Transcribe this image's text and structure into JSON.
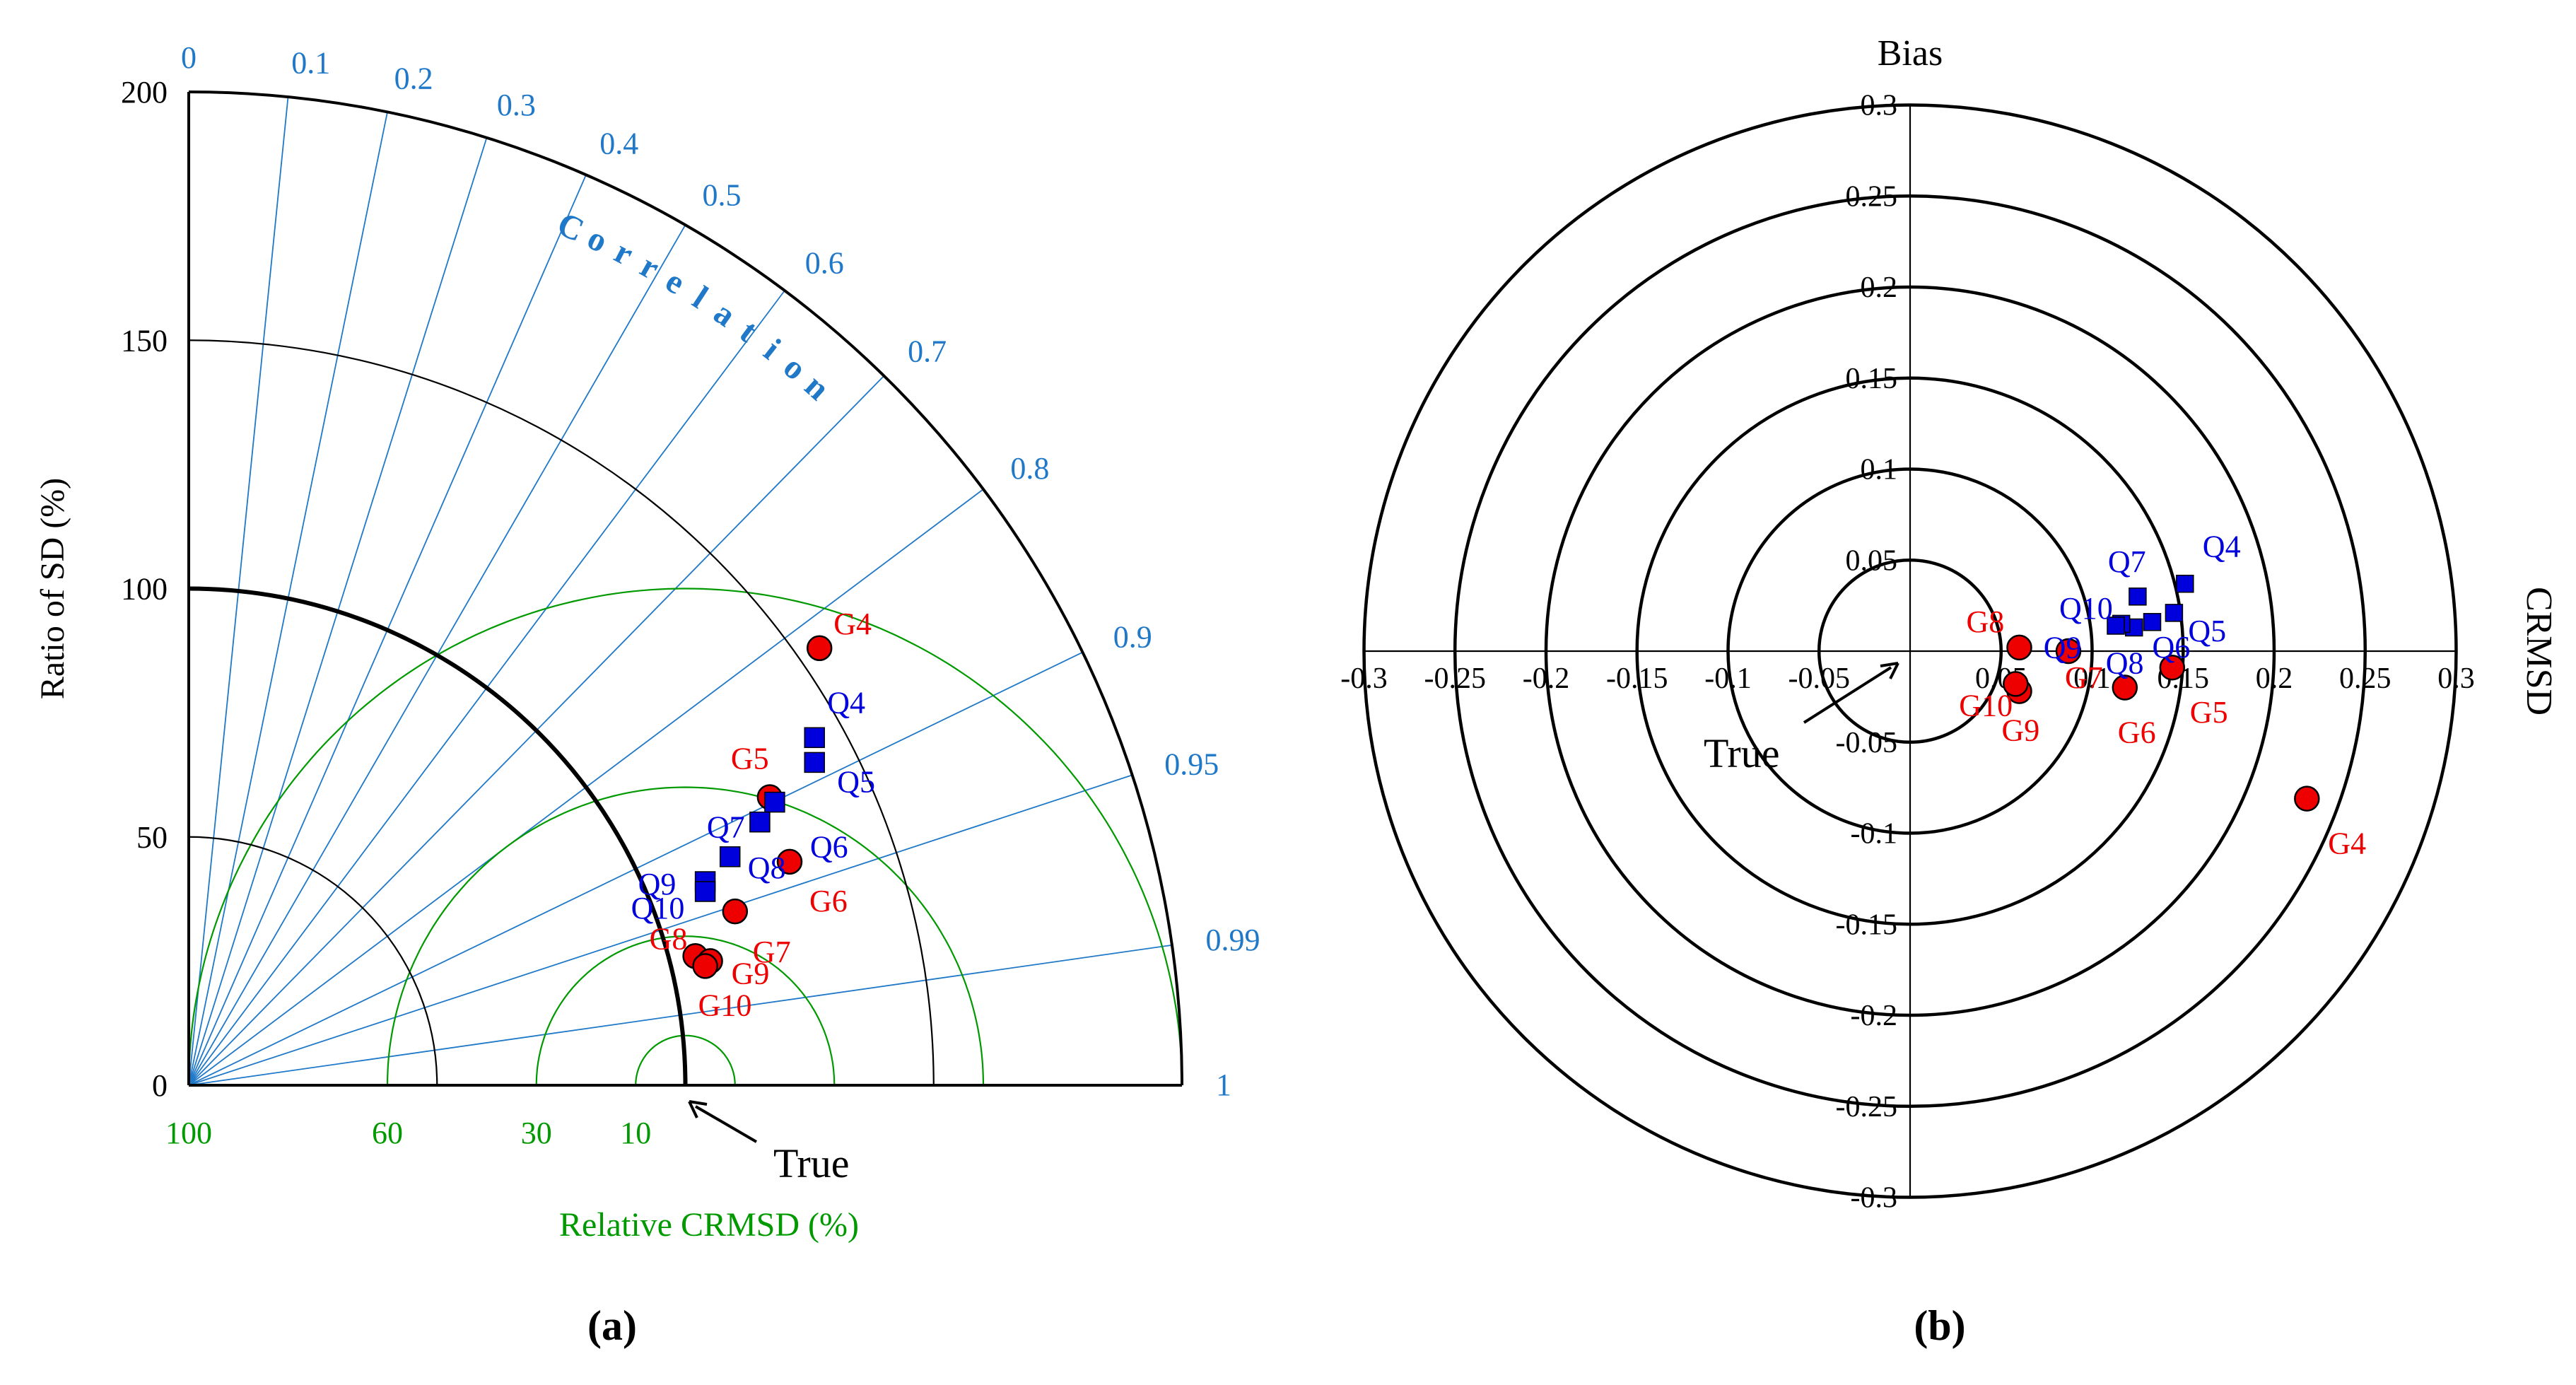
{
  "figure": {
    "panels": [
      "(a)",
      "(b)"
    ],
    "colors": {
      "axis": "#000000",
      "correlation": "#1f78c8",
      "crmsd": "#009a00",
      "series_g": "#ee0000",
      "series_q": "#0000dd",
      "text_g": "#ee0000",
      "text_q": "#0000dd"
    }
  },
  "chart_data": [
    {
      "type": "scatter",
      "subtype": "taylor-diagram",
      "panel": "(a)",
      "ylabel": "Ratio of SD (%)",
      "sd_ticks": [
        {
          "value": 0,
          "label": "0"
        },
        {
          "value": 50,
          "label": "50"
        },
        {
          "value": 100,
          "label": "100"
        },
        {
          "value": 150,
          "label": "150"
        },
        {
          "value": 200,
          "label": "200"
        }
      ],
      "sd_max": 200,
      "reference_sd": 100,
      "correlation_label": "Correlation",
      "correlation_ticks": [
        {
          "value": 0,
          "label": "0"
        },
        {
          "value": 0.1,
          "label": "0.1"
        },
        {
          "value": 0.2,
          "label": "0.2"
        },
        {
          "value": 0.3,
          "label": "0.3"
        },
        {
          "value": 0.4,
          "label": "0.4"
        },
        {
          "value": 0.5,
          "label": "0.5"
        },
        {
          "value": 0.6,
          "label": "0.6"
        },
        {
          "value": 0.7,
          "label": "0.7"
        },
        {
          "value": 0.8,
          "label": "0.8"
        },
        {
          "value": 0.9,
          "label": "0.9"
        },
        {
          "value": 0.95,
          "label": "0.95"
        },
        {
          "value": 0.99,
          "label": "0.99"
        },
        {
          "value": 1,
          "label": "1"
        }
      ],
      "crmsd_label": "Relative CRMSD (%)",
      "crmsd_ticks": [
        {
          "value": 10,
          "label": "10"
        },
        {
          "value": 30,
          "label": "30"
        },
        {
          "value": 60,
          "label": "60"
        },
        {
          "value": 100,
          "label": "100"
        }
      ],
      "true_label": "True",
      "series": [
        {
          "name": "G",
          "marker": "circle",
          "points": [
            {
              "label": "G4",
              "x": 127,
              "y": 88
            },
            {
              "label": "G5",
              "x": 117,
              "y": 58
            },
            {
              "label": "G6",
              "x": 121,
              "y": 45
            },
            {
              "label": "G7",
              "x": 110,
              "y": 35
            },
            {
              "label": "G8",
              "x": 102,
              "y": 26
            },
            {
              "label": "G9",
              "x": 105,
              "y": 25
            },
            {
              "label": "G10",
              "x": 104,
              "y": 24
            }
          ]
        },
        {
          "name": "Q",
          "marker": "square",
          "points": [
            {
              "label": "Q4",
              "x": 126,
              "y": 70
            },
            {
              "label": "Q5",
              "x": 126,
              "y": 65
            },
            {
              "label": "Q6",
              "x": 118,
              "y": 57
            },
            {
              "label": "Q7",
              "x": 115,
              "y": 53
            },
            {
              "label": "Q8",
              "x": 109,
              "y": 46
            },
            {
              "label": "Q9",
              "x": 104,
              "y": 41
            },
            {
              "label": "Q10",
              "x": 104,
              "y": 39
            }
          ]
        }
      ]
    },
    {
      "type": "scatter",
      "subtype": "target-diagram",
      "panel": "(b)",
      "ylabel": "Bias",
      "xlabel": "CRMSD",
      "xlim": [
        -0.3,
        0.3
      ],
      "ylim": [
        -0.3,
        0.3
      ],
      "x_ticks": [
        {
          "value": -0.3,
          "label": "-0.3"
        },
        {
          "value": -0.25,
          "label": "-0.25"
        },
        {
          "value": -0.2,
          "label": "-0.2"
        },
        {
          "value": -0.15,
          "label": "-0.15"
        },
        {
          "value": -0.1,
          "label": "-0.1"
        },
        {
          "value": -0.05,
          "label": "-0.05"
        },
        {
          "value": 0.05,
          "label": "0.05"
        },
        {
          "value": 0.1,
          "label": "0.1"
        },
        {
          "value": 0.15,
          "label": "0.15"
        },
        {
          "value": 0.2,
          "label": "0.2"
        },
        {
          "value": 0.25,
          "label": "0.25"
        },
        {
          "value": 0.3,
          "label": "0.3"
        }
      ],
      "y_ticks": [
        {
          "value": 0.3,
          "label": "0.3"
        },
        {
          "value": 0.25,
          "label": "0.25"
        },
        {
          "value": 0.2,
          "label": "0.2"
        },
        {
          "value": 0.15,
          "label": "0.15"
        },
        {
          "value": 0.1,
          "label": "0.1"
        },
        {
          "value": 0.05,
          "label": "0.05"
        },
        {
          "value": -0.05,
          "label": "-0.05"
        },
        {
          "value": -0.1,
          "label": "-0.1"
        },
        {
          "value": -0.15,
          "label": "-0.15"
        },
        {
          "value": -0.2,
          "label": "-0.2"
        },
        {
          "value": -0.25,
          "label": "-0.25"
        },
        {
          "value": -0.3,
          "label": "-0.3"
        }
      ],
      "circle_radii": [
        0.05,
        0.1,
        0.15,
        0.2,
        0.25,
        0.3
      ],
      "true_label": "True",
      "series": [
        {
          "name": "G",
          "marker": "circle",
          "points": [
            {
              "label": "G4",
              "x": 0.218,
              "y": -0.081
            },
            {
              "label": "G5",
              "x": 0.144,
              "y": -0.009
            },
            {
              "label": "G6",
              "x": 0.118,
              "y": -0.02
            },
            {
              "label": "G7",
              "x": 0.087,
              "y": 0.0
            },
            {
              "label": "G8",
              "x": 0.06,
              "y": 0.002
            },
            {
              "label": "G9",
              "x": 0.06,
              "y": -0.022
            },
            {
              "label": "G10",
              "x": 0.058,
              "y": -0.018
            }
          ]
        },
        {
          "name": "Q",
          "marker": "square",
          "points": [
            {
              "label": "Q4",
              "x": 0.151,
              "y": 0.037
            },
            {
              "label": "Q5",
              "x": 0.145,
              "y": 0.021
            },
            {
              "label": "Q6",
              "x": 0.133,
              "y": 0.016
            },
            {
              "label": "Q7",
              "x": 0.125,
              "y": 0.03
            },
            {
              "label": "Q8",
              "x": 0.123,
              "y": 0.013
            },
            {
              "label": "Q9",
              "x": 0.116,
              "y": 0.015
            },
            {
              "label": "Q10",
              "x": 0.113,
              "y": 0.014
            }
          ]
        }
      ]
    }
  ]
}
